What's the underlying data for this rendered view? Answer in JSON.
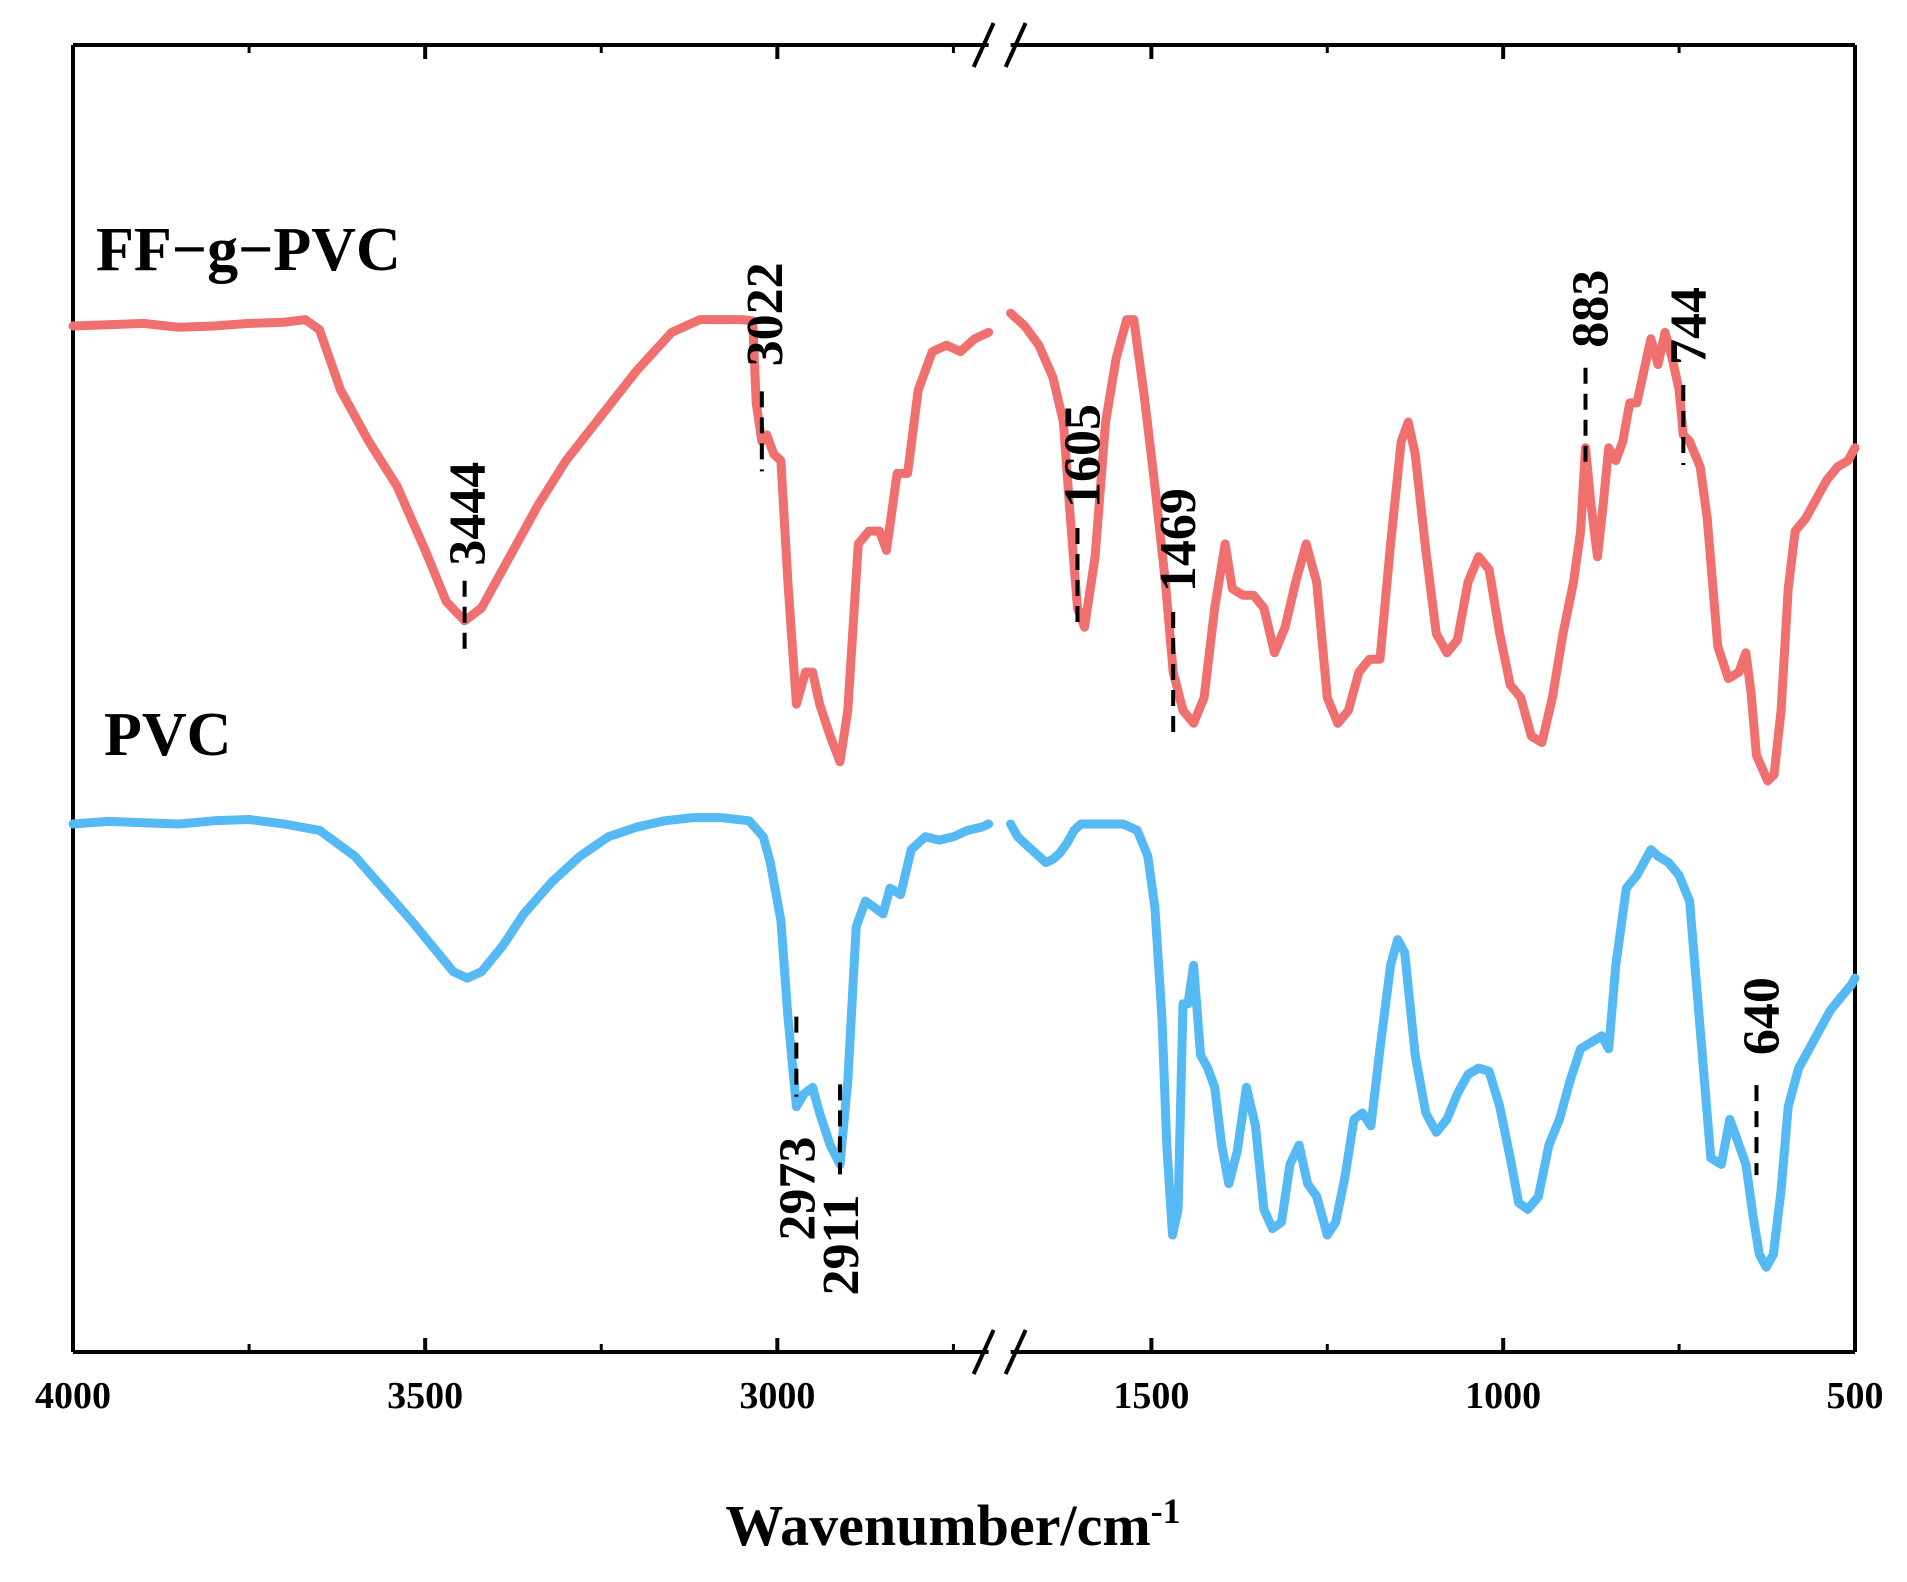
{
  "chart_data": {
    "type": "line",
    "title": "",
    "xlabel": "Wavenumber/cm",
    "xlabel_superscript": "-1",
    "ylabel": "",
    "x_axis": "reversed with break between 2700 and 1700",
    "segments": [
      {
        "range": [
          4000,
          2700
        ]
      },
      {
        "range": [
          1700,
          500
        ]
      }
    ],
    "tick_labels": [
      "4000",
      "3500",
      "3000",
      "1500",
      "1000",
      "500"
    ],
    "colors": {
      "FF-g-PVC": "#f07070",
      "PVC": "#55b9f4"
    },
    "series": [
      {
        "name": "FF−g−PVC",
        "label": "FF−g−PVC",
        "points": [
          [
            4000,
            1.0
          ],
          [
            3950,
            1.002
          ],
          [
            3900,
            1.004
          ],
          [
            3850,
            0.998
          ],
          [
            3800,
            1.0
          ],
          [
            3750,
            1.004
          ],
          [
            3700,
            1.006
          ],
          [
            3670,
            1.01
          ],
          [
            3650,
            0.994
          ],
          [
            3620,
            0.9
          ],
          [
            3580,
            0.82
          ],
          [
            3540,
            0.75
          ],
          [
            3500,
            0.65
          ],
          [
            3470,
            0.57
          ],
          [
            3444,
            0.54
          ],
          [
            3420,
            0.56
          ],
          [
            3380,
            0.64
          ],
          [
            3340,
            0.72
          ],
          [
            3300,
            0.79
          ],
          [
            3250,
            0.86
          ],
          [
            3200,
            0.93
          ],
          [
            3150,
            0.99
          ],
          [
            3110,
            1.01
          ],
          [
            3080,
            1.01
          ],
          [
            3050,
            1.01
          ],
          [
            3035,
            1.008
          ],
          [
            3030,
            0.88
          ],
          [
            3022,
            0.82
          ],
          [
            3015,
            0.83
          ],
          [
            3005,
            0.8
          ],
          [
            2995,
            0.79
          ],
          [
            2985,
            0.6
          ],
          [
            2973,
            0.41
          ],
          [
            2960,
            0.46
          ],
          [
            2950,
            0.46
          ],
          [
            2940,
            0.41
          ],
          [
            2925,
            0.36
          ],
          [
            2911,
            0.32
          ],
          [
            2900,
            0.4
          ],
          [
            2885,
            0.66
          ],
          [
            2870,
            0.68
          ],
          [
            2855,
            0.68
          ],
          [
            2845,
            0.65
          ],
          [
            2830,
            0.77
          ],
          [
            2815,
            0.77
          ],
          [
            2800,
            0.9
          ],
          [
            2780,
            0.96
          ],
          [
            2760,
            0.97
          ],
          [
            2740,
            0.96
          ],
          [
            2720,
            0.98
          ],
          [
            2700,
            0.99
          ],
          [
            1700,
            1.02
          ],
          [
            1680,
            1.0
          ],
          [
            1660,
            0.97
          ],
          [
            1640,
            0.92
          ],
          [
            1625,
            0.85
          ],
          [
            1615,
            0.7
          ],
          [
            1605,
            0.56
          ],
          [
            1595,
            0.53
          ],
          [
            1580,
            0.64
          ],
          [
            1565,
            0.85
          ],
          [
            1550,
            0.95
          ],
          [
            1535,
            1.01
          ],
          [
            1525,
            1.01
          ],
          [
            1510,
            0.89
          ],
          [
            1495,
            0.75
          ],
          [
            1480,
            0.6
          ],
          [
            1469,
            0.46
          ],
          [
            1455,
            0.4
          ],
          [
            1440,
            0.38
          ],
          [
            1425,
            0.42
          ],
          [
            1410,
            0.56
          ],
          [
            1395,
            0.66
          ],
          [
            1385,
            0.59
          ],
          [
            1370,
            0.58
          ],
          [
            1355,
            0.58
          ],
          [
            1340,
            0.56
          ],
          [
            1325,
            0.49
          ],
          [
            1310,
            0.53
          ],
          [
            1295,
            0.6
          ],
          [
            1280,
            0.66
          ],
          [
            1265,
            0.6
          ],
          [
            1250,
            0.42
          ],
          [
            1235,
            0.38
          ],
          [
            1220,
            0.4
          ],
          [
            1205,
            0.46
          ],
          [
            1190,
            0.48
          ],
          [
            1175,
            0.48
          ],
          [
            1160,
            0.66
          ],
          [
            1145,
            0.82
          ],
          [
            1135,
            0.85
          ],
          [
            1125,
            0.8
          ],
          [
            1110,
            0.65
          ],
          [
            1095,
            0.52
          ],
          [
            1080,
            0.49
          ],
          [
            1065,
            0.51
          ],
          [
            1050,
            0.6
          ],
          [
            1035,
            0.64
          ],
          [
            1020,
            0.62
          ],
          [
            1005,
            0.52
          ],
          [
            990,
            0.44
          ],
          [
            975,
            0.42
          ],
          [
            960,
            0.36
          ],
          [
            945,
            0.35
          ],
          [
            930,
            0.42
          ],
          [
            915,
            0.52
          ],
          [
            900,
            0.6
          ],
          [
            890,
            0.68
          ],
          [
            883,
            0.81
          ],
          [
            875,
            0.72
          ],
          [
            866,
            0.64
          ],
          [
            858,
            0.72
          ],
          [
            850,
            0.81
          ],
          [
            840,
            0.79
          ],
          [
            830,
            0.82
          ],
          [
            820,
            0.88
          ],
          [
            810,
            0.88
          ],
          [
            800,
            0.93
          ],
          [
            790,
            0.98
          ],
          [
            780,
            0.94
          ],
          [
            770,
            0.99
          ],
          [
            760,
            0.95
          ],
          [
            750,
            0.9
          ],
          [
            744,
            0.83
          ],
          [
            735,
            0.82
          ],
          [
            720,
            0.78
          ],
          [
            710,
            0.7
          ],
          [
            695,
            0.5
          ],
          [
            680,
            0.45
          ],
          [
            665,
            0.46
          ],
          [
            655,
            0.49
          ],
          [
            648,
            0.43
          ],
          [
            640,
            0.33
          ],
          [
            632,
            0.31
          ],
          [
            624,
            0.29
          ],
          [
            615,
            0.3
          ],
          [
            605,
            0.4
          ],
          [
            595,
            0.59
          ],
          [
            585,
            0.68
          ],
          [
            570,
            0.7
          ],
          [
            555,
            0.73
          ],
          [
            540,
            0.76
          ],
          [
            525,
            0.78
          ],
          [
            510,
            0.79
          ],
          [
            500,
            0.81
          ]
        ]
      },
      {
        "name": "PVC",
        "label": "PVC",
        "points": [
          [
            4000,
            1.0
          ],
          [
            3950,
            1.004
          ],
          [
            3900,
            1.002
          ],
          [
            3850,
            1.0
          ],
          [
            3800,
            1.005
          ],
          [
            3750,
            1.007
          ],
          [
            3700,
            1.0
          ],
          [
            3650,
            0.99
          ],
          [
            3600,
            0.95
          ],
          [
            3560,
            0.9
          ],
          [
            3520,
            0.85
          ],
          [
            3490,
            0.81
          ],
          [
            3460,
            0.77
          ],
          [
            3440,
            0.76
          ],
          [
            3420,
            0.77
          ],
          [
            3390,
            0.81
          ],
          [
            3360,
            0.86
          ],
          [
            3320,
            0.91
          ],
          [
            3280,
            0.95
          ],
          [
            3240,
            0.98
          ],
          [
            3200,
            0.995
          ],
          [
            3160,
            1.005
          ],
          [
            3120,
            1.01
          ],
          [
            3080,
            1.01
          ],
          [
            3040,
            1.005
          ],
          [
            3020,
            0.98
          ],
          [
            3010,
            0.94
          ],
          [
            2995,
            0.85
          ],
          [
            2985,
            0.7
          ],
          [
            2973,
            0.56
          ],
          [
            2962,
            0.58
          ],
          [
            2950,
            0.59
          ],
          [
            2940,
            0.55
          ],
          [
            2925,
            0.5
          ],
          [
            2911,
            0.47
          ],
          [
            2900,
            0.6
          ],
          [
            2888,
            0.84
          ],
          [
            2875,
            0.88
          ],
          [
            2862,
            0.87
          ],
          [
            2850,
            0.86
          ],
          [
            2840,
            0.9
          ],
          [
            2825,
            0.89
          ],
          [
            2810,
            0.96
          ],
          [
            2790,
            0.98
          ],
          [
            2770,
            0.975
          ],
          [
            2750,
            0.98
          ],
          [
            2730,
            0.99
          ],
          [
            2710,
            0.995
          ],
          [
            2700,
            1.0
          ],
          [
            1700,
            1.0
          ],
          [
            1690,
            0.98
          ],
          [
            1680,
            0.97
          ],
          [
            1670,
            0.96
          ],
          [
            1660,
            0.95
          ],
          [
            1650,
            0.94
          ],
          [
            1640,
            0.945
          ],
          [
            1630,
            0.955
          ],
          [
            1620,
            0.97
          ],
          [
            1610,
            0.99
          ],
          [
            1600,
            1.0
          ],
          [
            1585,
            1.0
          ],
          [
            1560,
            1.0
          ],
          [
            1540,
            1.0
          ],
          [
            1520,
            0.99
          ],
          [
            1505,
            0.95
          ],
          [
            1495,
            0.87
          ],
          [
            1485,
            0.7
          ],
          [
            1478,
            0.5
          ],
          [
            1470,
            0.36
          ],
          [
            1462,
            0.4
          ],
          [
            1455,
            0.72
          ],
          [
            1448,
            0.72
          ],
          [
            1440,
            0.78
          ],
          [
            1430,
            0.64
          ],
          [
            1420,
            0.62
          ],
          [
            1410,
            0.59
          ],
          [
            1400,
            0.5
          ],
          [
            1390,
            0.44
          ],
          [
            1378,
            0.49
          ],
          [
            1365,
            0.59
          ],
          [
            1352,
            0.53
          ],
          [
            1340,
            0.4
          ],
          [
            1328,
            0.37
          ],
          [
            1315,
            0.38
          ],
          [
            1303,
            0.47
          ],
          [
            1290,
            0.5
          ],
          [
            1278,
            0.44
          ],
          [
            1265,
            0.42
          ],
          [
            1250,
            0.36
          ],
          [
            1238,
            0.38
          ],
          [
            1225,
            0.45
          ],
          [
            1212,
            0.54
          ],
          [
            1200,
            0.55
          ],
          [
            1188,
            0.53
          ],
          [
            1175,
            0.65
          ],
          [
            1160,
            0.78
          ],
          [
            1150,
            0.82
          ],
          [
            1140,
            0.8
          ],
          [
            1125,
            0.64
          ],
          [
            1110,
            0.55
          ],
          [
            1095,
            0.52
          ],
          [
            1080,
            0.54
          ],
          [
            1065,
            0.58
          ],
          [
            1050,
            0.61
          ],
          [
            1035,
            0.62
          ],
          [
            1020,
            0.615
          ],
          [
            1005,
            0.56
          ],
          [
            990,
            0.48
          ],
          [
            978,
            0.41
          ],
          [
            965,
            0.4
          ],
          [
            950,
            0.42
          ],
          [
            935,
            0.5
          ],
          [
            920,
            0.54
          ],
          [
            905,
            0.6
          ],
          [
            890,
            0.65
          ],
          [
            875,
            0.66
          ],
          [
            860,
            0.67
          ],
          [
            850,
            0.65
          ],
          [
            840,
            0.78
          ],
          [
            825,
            0.9
          ],
          [
            810,
            0.92
          ],
          [
            800,
            0.94
          ],
          [
            790,
            0.96
          ],
          [
            780,
            0.95
          ],
          [
            765,
            0.94
          ],
          [
            750,
            0.92
          ],
          [
            735,
            0.88
          ],
          [
            720,
            0.68
          ],
          [
            705,
            0.48
          ],
          [
            690,
            0.47
          ],
          [
            678,
            0.54
          ],
          [
            668,
            0.51
          ],
          [
            655,
            0.47
          ],
          [
            645,
            0.39
          ],
          [
            636,
            0.33
          ],
          [
            626,
            0.31
          ],
          [
            616,
            0.33
          ],
          [
            605,
            0.43
          ],
          [
            595,
            0.56
          ],
          [
            580,
            0.62
          ],
          [
            565,
            0.65
          ],
          [
            550,
            0.68
          ],
          [
            535,
            0.71
          ],
          [
            520,
            0.73
          ],
          [
            505,
            0.75
          ],
          [
            500,
            0.76
          ]
        ]
      }
    ],
    "annotations": [
      {
        "series": "FF−g−PVC",
        "label": "3444",
        "x": 3444
      },
      {
        "series": "FF−g−PVC",
        "label": "3022",
        "x": 3022
      },
      {
        "series": "FF−g−PVC",
        "label": "1605",
        "x": 1605
      },
      {
        "series": "FF−g−PVC",
        "label": "1469",
        "x": 1469
      },
      {
        "series": "FF−g−PVC",
        "label": "883",
        "x": 883
      },
      {
        "series": "FF−g−PVC",
        "label": "744",
        "x": 744
      },
      {
        "series": "PVC",
        "label": "2973",
        "x": 2973
      },
      {
        "series": "PVC",
        "label": "2911",
        "x": 2911
      },
      {
        "series": "PVC",
        "label": "640",
        "x": 640
      }
    ]
  }
}
